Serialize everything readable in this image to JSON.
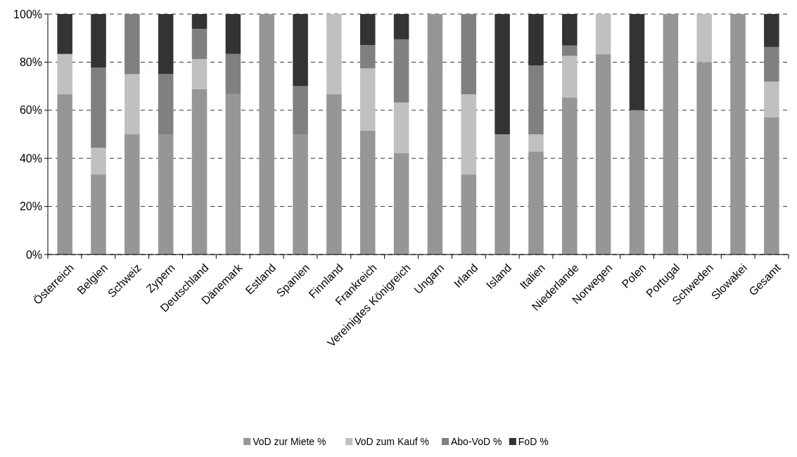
{
  "chart_data": {
    "type": "bar",
    "stacked": true,
    "categories": [
      "Österreich",
      "Belgien",
      "Schweiz",
      "Zypern",
      "Deutschland",
      "Dänemark",
      "Estland",
      "Spanien",
      "Finnland",
      "Frankreich",
      "Vereinigtes Königreich",
      "Ungarn",
      "Irland",
      "Island",
      "Italien",
      "Niederlande",
      "Norwegen",
      "Polen",
      "Portugal",
      "Schweden",
      "Slowakei",
      "Gesamt"
    ],
    "series": [
      {
        "name": "VoD zur Miete %",
        "color": "#969696",
        "values": [
          66.7,
          33.3,
          50,
          50,
          68.8,
          66.7,
          100,
          50,
          66.7,
          51.6,
          42.1,
          100,
          33.3,
          50,
          42.9,
          65.2,
          83.3,
          60,
          100,
          80,
          100,
          57.1
        ]
      },
      {
        "name": "VoD zum Kauf %",
        "color": "#c0c0c0",
        "values": [
          16.7,
          11.1,
          25,
          0,
          12.5,
          0,
          0,
          0,
          33.3,
          25.8,
          21.1,
          0,
          33.3,
          0,
          7.1,
          17.4,
          16.7,
          0,
          0,
          20,
          0,
          14.8
        ]
      },
      {
        "name": "Abo-VoD %",
        "color": "#808080",
        "values": [
          0,
          33.3,
          25,
          25,
          12.5,
          16.7,
          0,
          20,
          0,
          9.7,
          26.3,
          0,
          33.4,
          0,
          28.6,
          4.3,
          0,
          0,
          0,
          0,
          0,
          14.4
        ]
      },
      {
        "name": "FoD %",
        "color": "#333333",
        "values": [
          16.6,
          22.3,
          0,
          25,
          6.2,
          16.6,
          0,
          30,
          0,
          12.9,
          10.5,
          0,
          0,
          50,
          21.4,
          13.1,
          0,
          40,
          0,
          0,
          0,
          13.7
        ]
      }
    ],
    "ylim": [
      0,
      100
    ],
    "yticks": [
      {
        "value": 0,
        "label": "0%"
      },
      {
        "value": 20,
        "label": "20%"
      },
      {
        "value": 40,
        "label": "40%"
      },
      {
        "value": 60,
        "label": "60%"
      },
      {
        "value": 80,
        "label": "80%"
      },
      {
        "value": 100,
        "label": "100%"
      }
    ],
    "grid": "y",
    "legend": "bottom"
  }
}
